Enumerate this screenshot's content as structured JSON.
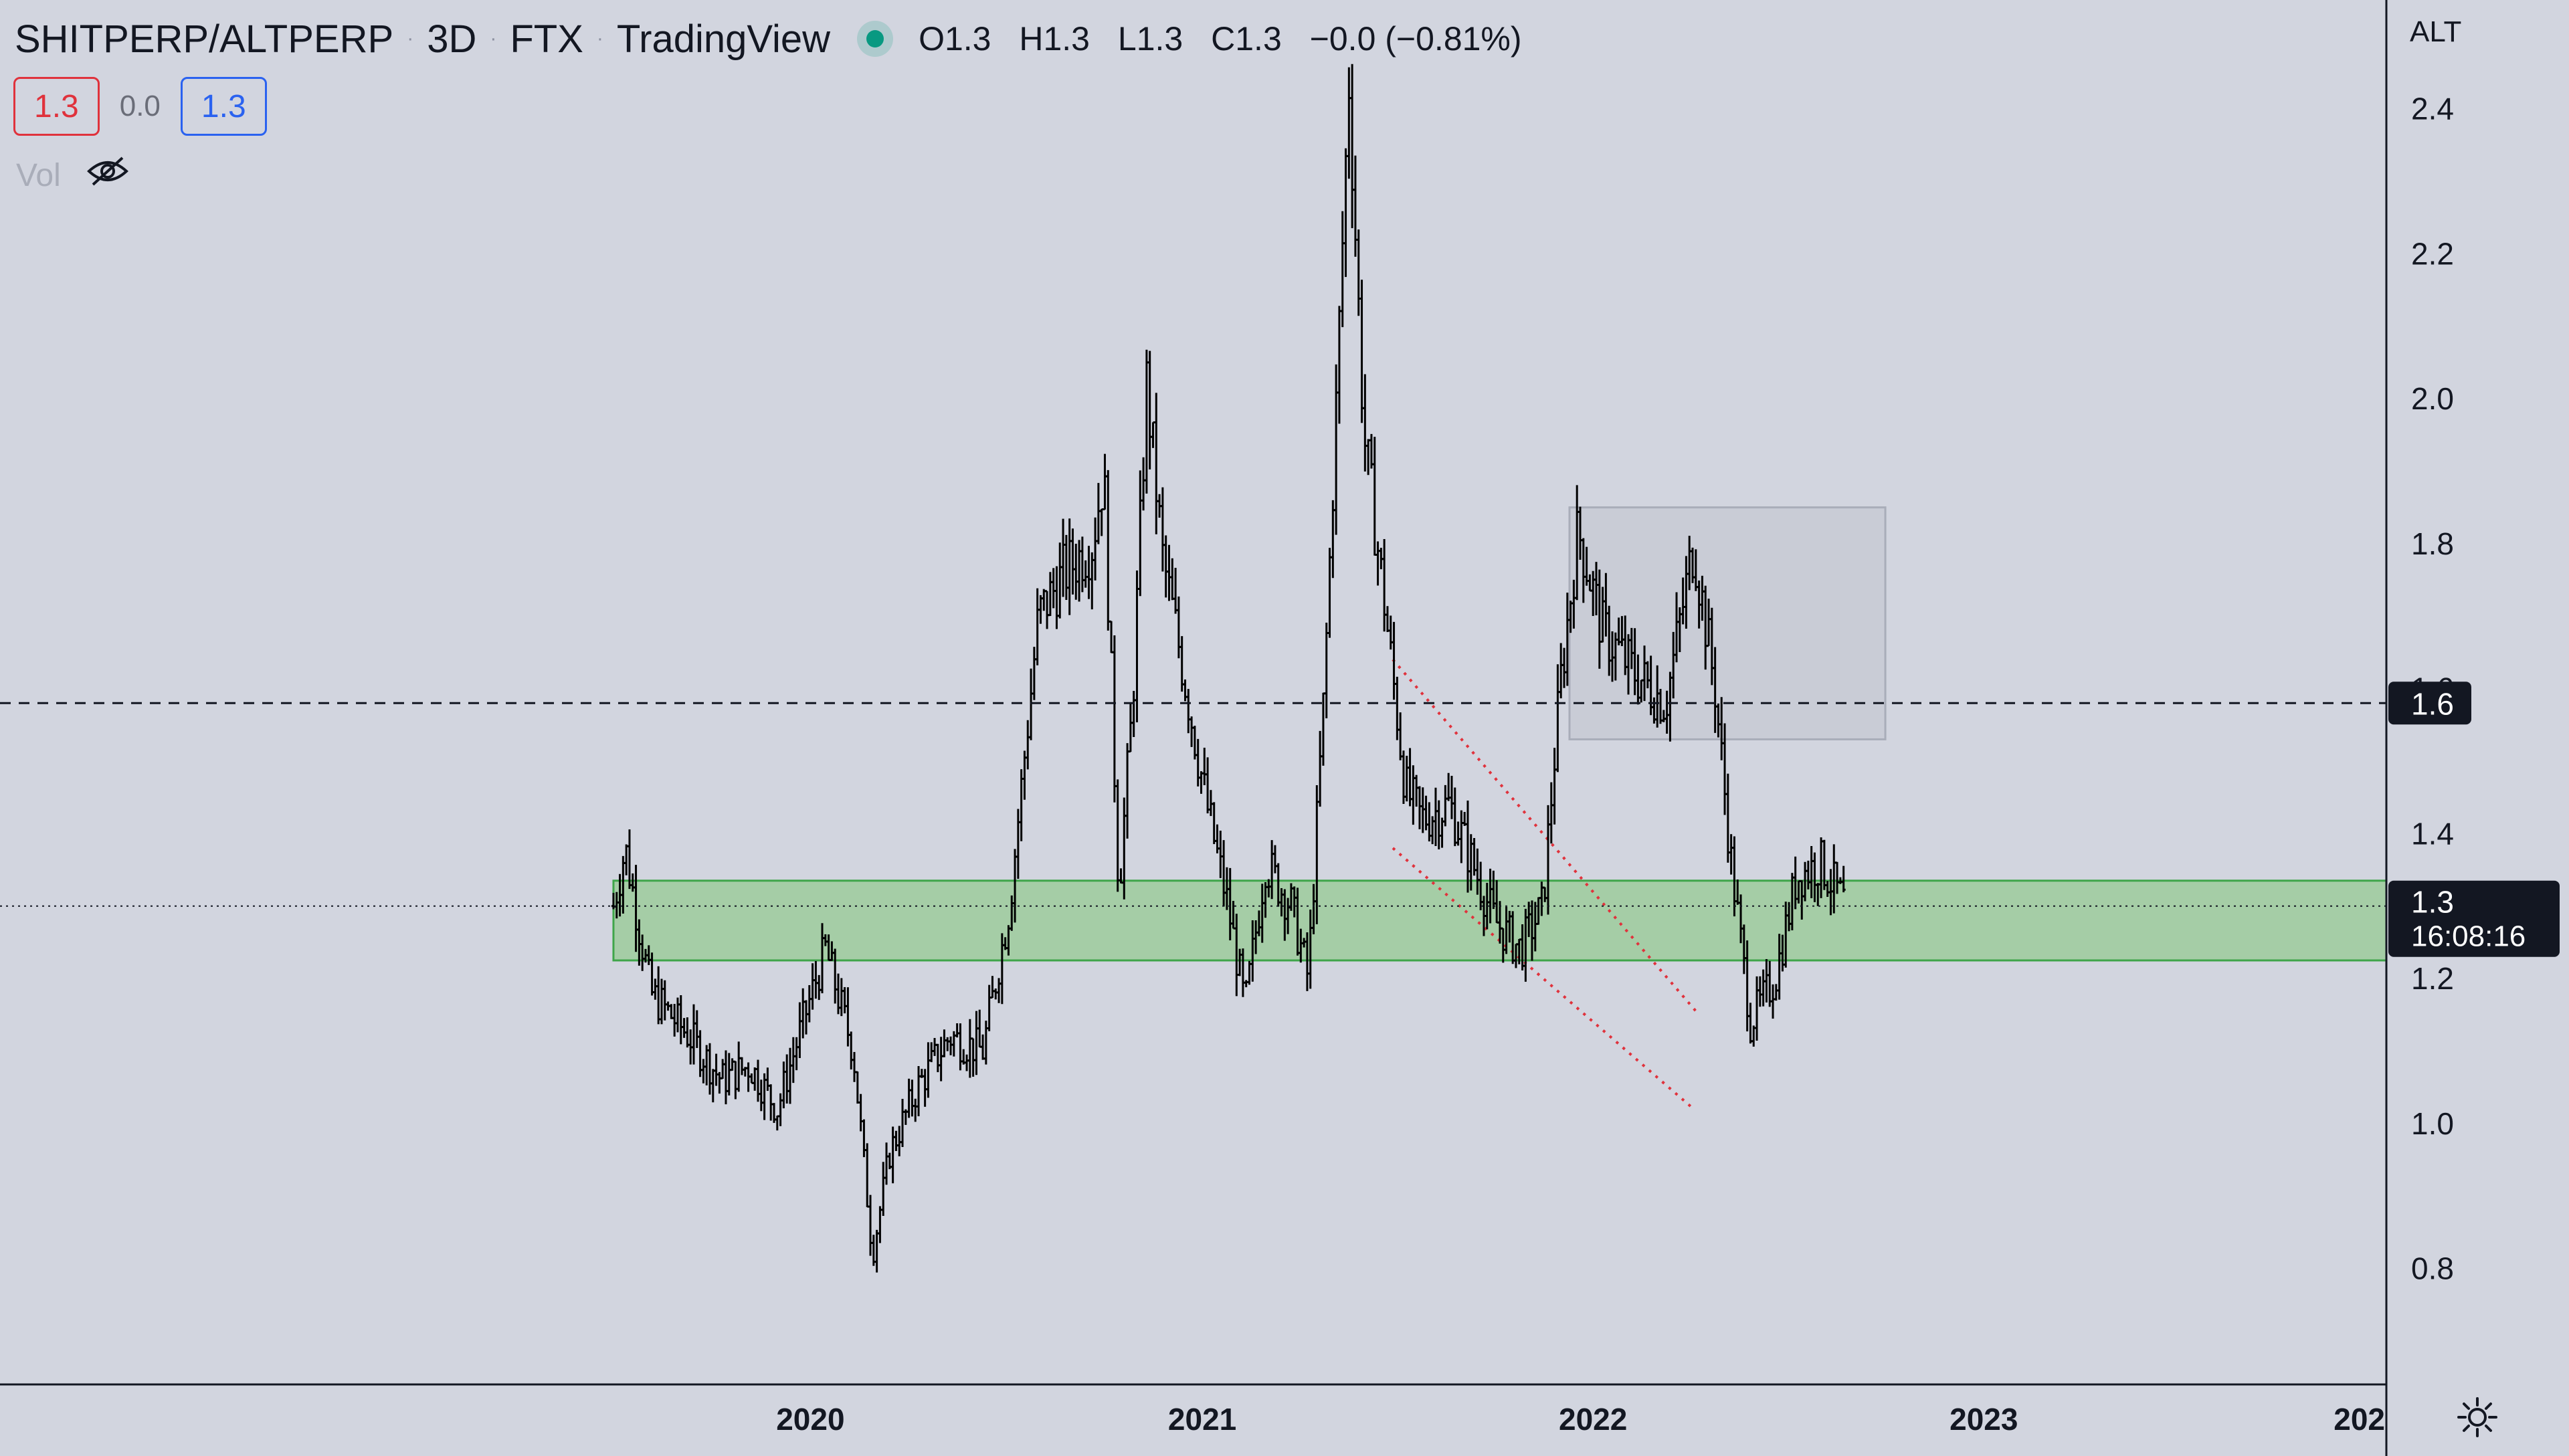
{
  "header": {
    "symbol": "SHITPERP/ALTPERP",
    "interval": "3D",
    "exchange": "FTX",
    "source": "TradingView",
    "ohlc": {
      "o": "O1.3",
      "h": "H1.3",
      "l": "L1.3",
      "c": "C1.3",
      "change": "−0.0 (−0.81%)"
    }
  },
  "trade": {
    "sell": "1.3",
    "spread": "0.0",
    "buy": "1.3"
  },
  "volume": {
    "label": "Vol",
    "icon": "eye-crossed-icon"
  },
  "settings_icon": "gear-icon",
  "colors": {
    "background": "#d2d5df",
    "candle": "#000000",
    "zone_fill": "#9ecb9c",
    "zone_stroke": "#3fa54a",
    "box_fill": "#c9ccd6",
    "trendline": "#e0323c",
    "live_dot": "#089981"
  },
  "chart_data": {
    "type": "candlestick",
    "y_axis_title": "ALT",
    "y_ticks": [
      "2.4",
      "2.2",
      "2.0",
      "1.8",
      "1.6",
      "1.4",
      "1.2",
      "1.0",
      "0.8"
    ],
    "x_ticks": [
      "2020",
      "2021",
      "2022",
      "2023",
      "202"
    ],
    "ylim": [
      0.64,
      2.55
    ],
    "xlim": [
      "2017-12-05",
      "2024-01-12"
    ],
    "series": [
      {
        "close_path": [
          [
            "2019-07-01",
            1.3
          ],
          [
            "2019-07-12",
            1.38
          ],
          [
            "2019-08-05",
            1.18
          ],
          [
            "2019-09-10",
            1.12
          ],
          [
            "2019-10-10",
            1.06
          ],
          [
            "2019-11-05",
            1.08
          ],
          [
            "2019-12-01",
            1.02
          ],
          [
            "2019-12-25",
            1.14
          ],
          [
            "2020-01-15",
            1.24
          ],
          [
            "2020-02-10",
            1.1
          ],
          [
            "2020-02-28",
            0.82
          ],
          [
            "2020-03-15",
            0.96
          ],
          [
            "2020-04-10",
            1.05
          ],
          [
            "2020-05-10",
            1.12
          ],
          [
            "2020-06-10",
            1.1
          ],
          [
            "2020-07-05",
            1.3
          ],
          [
            "2020-08-01",
            1.7
          ],
          [
            "2020-08-25",
            1.76
          ],
          [
            "2020-09-20",
            1.8
          ],
          [
            "2020-10-01",
            1.9
          ],
          [
            "2020-10-15",
            1.32
          ],
          [
            "2020-10-28",
            1.58
          ],
          [
            "2020-11-10",
            2.02
          ],
          [
            "2020-11-25",
            1.78
          ],
          [
            "2020-12-10",
            1.66
          ],
          [
            "2021-01-05",
            1.44
          ],
          [
            "2021-01-25",
            1.3
          ],
          [
            "2021-02-10",
            1.16
          ],
          [
            "2021-03-01",
            1.36
          ],
          [
            "2021-03-25",
            1.3
          ],
          [
            "2021-04-10",
            1.2
          ],
          [
            "2021-04-25",
            1.6
          ],
          [
            "2021-05-05",
            1.95
          ],
          [
            "2021-05-18",
            2.44
          ],
          [
            "2021-06-01",
            1.95
          ],
          [
            "2021-06-20",
            1.72
          ],
          [
            "2021-07-10",
            1.46
          ],
          [
            "2021-07-25",
            1.42
          ],
          [
            "2021-08-20",
            1.44
          ],
          [
            "2021-09-10",
            1.36
          ],
          [
            "2021-10-01",
            1.28
          ],
          [
            "2021-10-25",
            1.24
          ],
          [
            "2021-11-15",
            1.3
          ],
          [
            "2021-12-01",
            1.6
          ],
          [
            "2021-12-18",
            1.82
          ],
          [
            "2022-01-10",
            1.68
          ],
          [
            "2022-02-10",
            1.62
          ],
          [
            "2022-03-10",
            1.58
          ],
          [
            "2022-04-05",
            1.8
          ],
          [
            "2022-04-25",
            1.6
          ],
          [
            "2022-05-10",
            1.36
          ],
          [
            "2022-05-28",
            1.14
          ],
          [
            "2022-06-20",
            1.2
          ],
          [
            "2022-07-10",
            1.34
          ],
          [
            "2022-08-01",
            1.36
          ],
          [
            "2022-08-25",
            1.3
          ]
        ]
      }
    ],
    "annotations": {
      "price_line": {
        "value": 1.58,
        "label": "1.6",
        "style": "dashed"
      },
      "last_price": {
        "value": 1.3,
        "label": "1.3",
        "countdown": "16:08:16",
        "style": "dotted"
      },
      "support_zone": {
        "x": [
          "2019-07-01",
          "2024-01-12"
        ],
        "y": [
          1.225,
          1.335
        ]
      },
      "range_box": {
        "x": [
          "2021-12-10",
          "2022-10-01"
        ],
        "y": [
          1.53,
          1.85
        ]
      },
      "trendline_upper": {
        "from": [
          "2021-06-28",
          1.64
        ],
        "to": [
          "2022-04-10",
          1.15
        ]
      },
      "trendline_lower": {
        "from": [
          "2021-06-28",
          1.38
        ],
        "to": [
          "2022-04-05",
          1.02
        ]
      }
    },
    "grid": false,
    "legend": "none"
  }
}
